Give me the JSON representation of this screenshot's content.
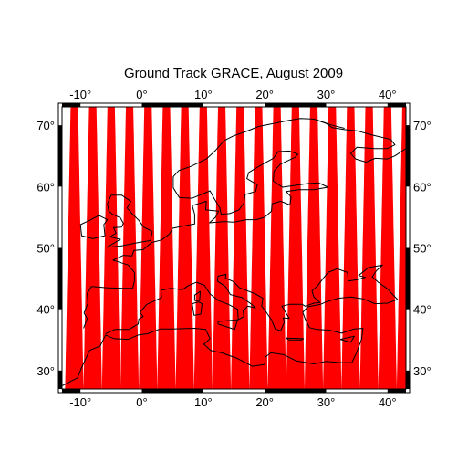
{
  "title": "Ground Track GRACE, August 2009",
  "map": {
    "lon_range": [
      -13,
      43
    ],
    "lat_range": [
      27,
      73
    ],
    "lon_ticks": [
      -10,
      0,
      10,
      20,
      30,
      40
    ],
    "lat_ticks": [
      30,
      40,
      50,
      60,
      70
    ],
    "lon_tick_labels": [
      "-10°",
      "0°",
      "10°",
      "20°",
      "30°",
      "40°"
    ],
    "lat_tick_labels": [
      "30°",
      "40°",
      "50°",
      "60°",
      "70°"
    ],
    "frame_interval_deg": 10
  },
  "ground_tracks": {
    "color": "#ff0000",
    "centers_lon": [
      -11,
      -5,
      1,
      7,
      13,
      19,
      25,
      31,
      37,
      43,
      -8,
      -2,
      4,
      10,
      16,
      22,
      28,
      34,
      40
    ],
    "half_width_lat_low_deg": 1.5,
    "half_width_lat_high_deg": 0.6
  },
  "coastline": {
    "color": "#000000"
  }
}
